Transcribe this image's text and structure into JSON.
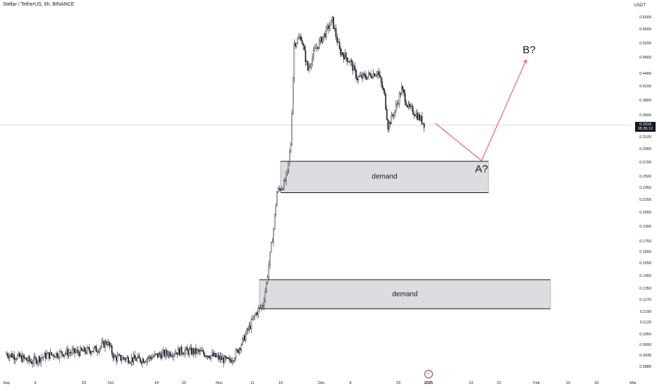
{
  "header": {
    "title": "Stellar / TetherUS, 6h, BINANCE",
    "currency": "USDT"
  },
  "price_tag": {
    "price": "0.3318",
    "countdown": "05:35:12"
  },
  "icons": {
    "event": "lightning-icon"
  },
  "colors": {
    "candle": "#131722",
    "zone_fill": "#dcdde0",
    "zone_border": "#131722",
    "projection": "#f23645",
    "event": "#9c27b0"
  },
  "chart_data": {
    "type": "candlestick",
    "title": "Stellar / TetherUS, 6h, BINANCE",
    "yscale": "log",
    "ylim": [
      0.0855,
      0.64
    ],
    "y_ticks": [
      "0.6000",
      "0.5600",
      "0.5200",
      "0.4800",
      "0.4400",
      "0.4100",
      "0.3800",
      "0.3500",
      "0.3100",
      "0.2900",
      "0.2700",
      "0.2500",
      "0.2350",
      "0.2200",
      "0.2050",
      "0.1900",
      "0.1750",
      "0.1650",
      "0.1550",
      "0.1450",
      "0.1350",
      "0.1270",
      "0.1190",
      "0.1120",
      "0.1050",
      "0.0990",
      "0.0935",
      "0.0880"
    ],
    "x_ticks": [
      "Sep",
      "9",
      "23",
      "Oct",
      "14",
      "22",
      "Nov",
      "11",
      "19",
      "Dec",
      "9",
      "23",
      "2025",
      "13",
      "21",
      "Feb",
      "10",
      "18",
      "Mar"
    ],
    "x_tick_bold": "2025",
    "current_price": 0.3318,
    "price_path": [
      {
        "date": "2024-09-01",
        "close": 0.0945
      },
      {
        "date": "2024-09-05",
        "close": 0.0925
      },
      {
        "date": "2024-09-08",
        "close": 0.0905
      },
      {
        "date": "2024-09-12",
        "close": 0.0935
      },
      {
        "date": "2024-09-17",
        "close": 0.095
      },
      {
        "date": "2024-09-22",
        "close": 0.0955
      },
      {
        "date": "2024-09-27",
        "close": 0.097
      },
      {
        "date": "2024-09-30",
        "close": 0.101
      },
      {
        "date": "2024-10-02",
        "close": 0.0925
      },
      {
        "date": "2024-10-06",
        "close": 0.092
      },
      {
        "date": "2024-10-10",
        "close": 0.0915
      },
      {
        "date": "2024-10-15",
        "close": 0.094
      },
      {
        "date": "2024-10-21",
        "close": 0.096
      },
      {
        "date": "2024-10-26",
        "close": 0.0955
      },
      {
        "date": "2024-10-30",
        "close": 0.0935
      },
      {
        "date": "2024-11-04",
        "close": 0.0905
      },
      {
        "date": "2024-11-06",
        "close": 0.0945
      },
      {
        "date": "2024-11-08",
        "close": 0.101
      },
      {
        "date": "2024-11-10",
        "close": 0.109
      },
      {
        "date": "2024-11-12",
        "close": 0.118
      },
      {
        "date": "2024-11-14",
        "close": 0.124
      },
      {
        "date": "2024-11-15",
        "close": 0.139
      },
      {
        "date": "2024-11-16",
        "close": 0.162
      },
      {
        "date": "2024-11-17",
        "close": 0.188
      },
      {
        "date": "2024-11-18",
        "close": 0.23
      },
      {
        "date": "2024-11-20",
        "close": 0.24
      },
      {
        "date": "2024-11-21",
        "close": 0.255
      },
      {
        "date": "2024-11-22",
        "close": 0.3
      },
      {
        "date": "2024-11-23",
        "close": 0.52
      },
      {
        "date": "2024-11-25",
        "close": 0.54
      },
      {
        "date": "2024-11-27",
        "close": 0.45
      },
      {
        "date": "2024-11-29",
        "close": 0.5
      },
      {
        "date": "2024-12-02",
        "close": 0.55
      },
      {
        "date": "2024-12-04",
        "close": 0.59
      },
      {
        "date": "2024-12-06",
        "close": 0.5
      },
      {
        "date": "2024-12-09",
        "close": 0.47
      },
      {
        "date": "2024-12-11",
        "close": 0.43
      },
      {
        "date": "2024-12-14",
        "close": 0.435
      },
      {
        "date": "2024-12-17",
        "close": 0.445
      },
      {
        "date": "2024-12-19",
        "close": 0.39
      },
      {
        "date": "2024-12-20",
        "close": 0.33
      },
      {
        "date": "2024-12-22",
        "close": 0.36
      },
      {
        "date": "2024-12-24",
        "close": 0.405
      },
      {
        "date": "2024-12-26",
        "close": 0.365
      },
      {
        "date": "2024-12-28",
        "close": 0.355
      },
      {
        "date": "2024-12-30",
        "close": 0.34
      },
      {
        "date": "2024-12-31",
        "close": 0.3318
      }
    ],
    "projection": [
      {
        "label": "",
        "date": "2025-01-03",
        "price": 0.335
      },
      {
        "label": "A?",
        "date": "2025-01-16",
        "price": 0.273
      },
      {
        "label": "B?",
        "date": "2025-01-29",
        "price": 0.475
      }
    ],
    "zones": [
      {
        "label": "demand",
        "start": "2024-11-19",
        "end": "2025-01-18",
        "top": 0.272,
        "bottom": 0.229
      },
      {
        "label": "demand",
        "start": "2024-11-13",
        "end": "2025-02-05",
        "top": 0.142,
        "bottom": 0.121
      }
    ]
  }
}
